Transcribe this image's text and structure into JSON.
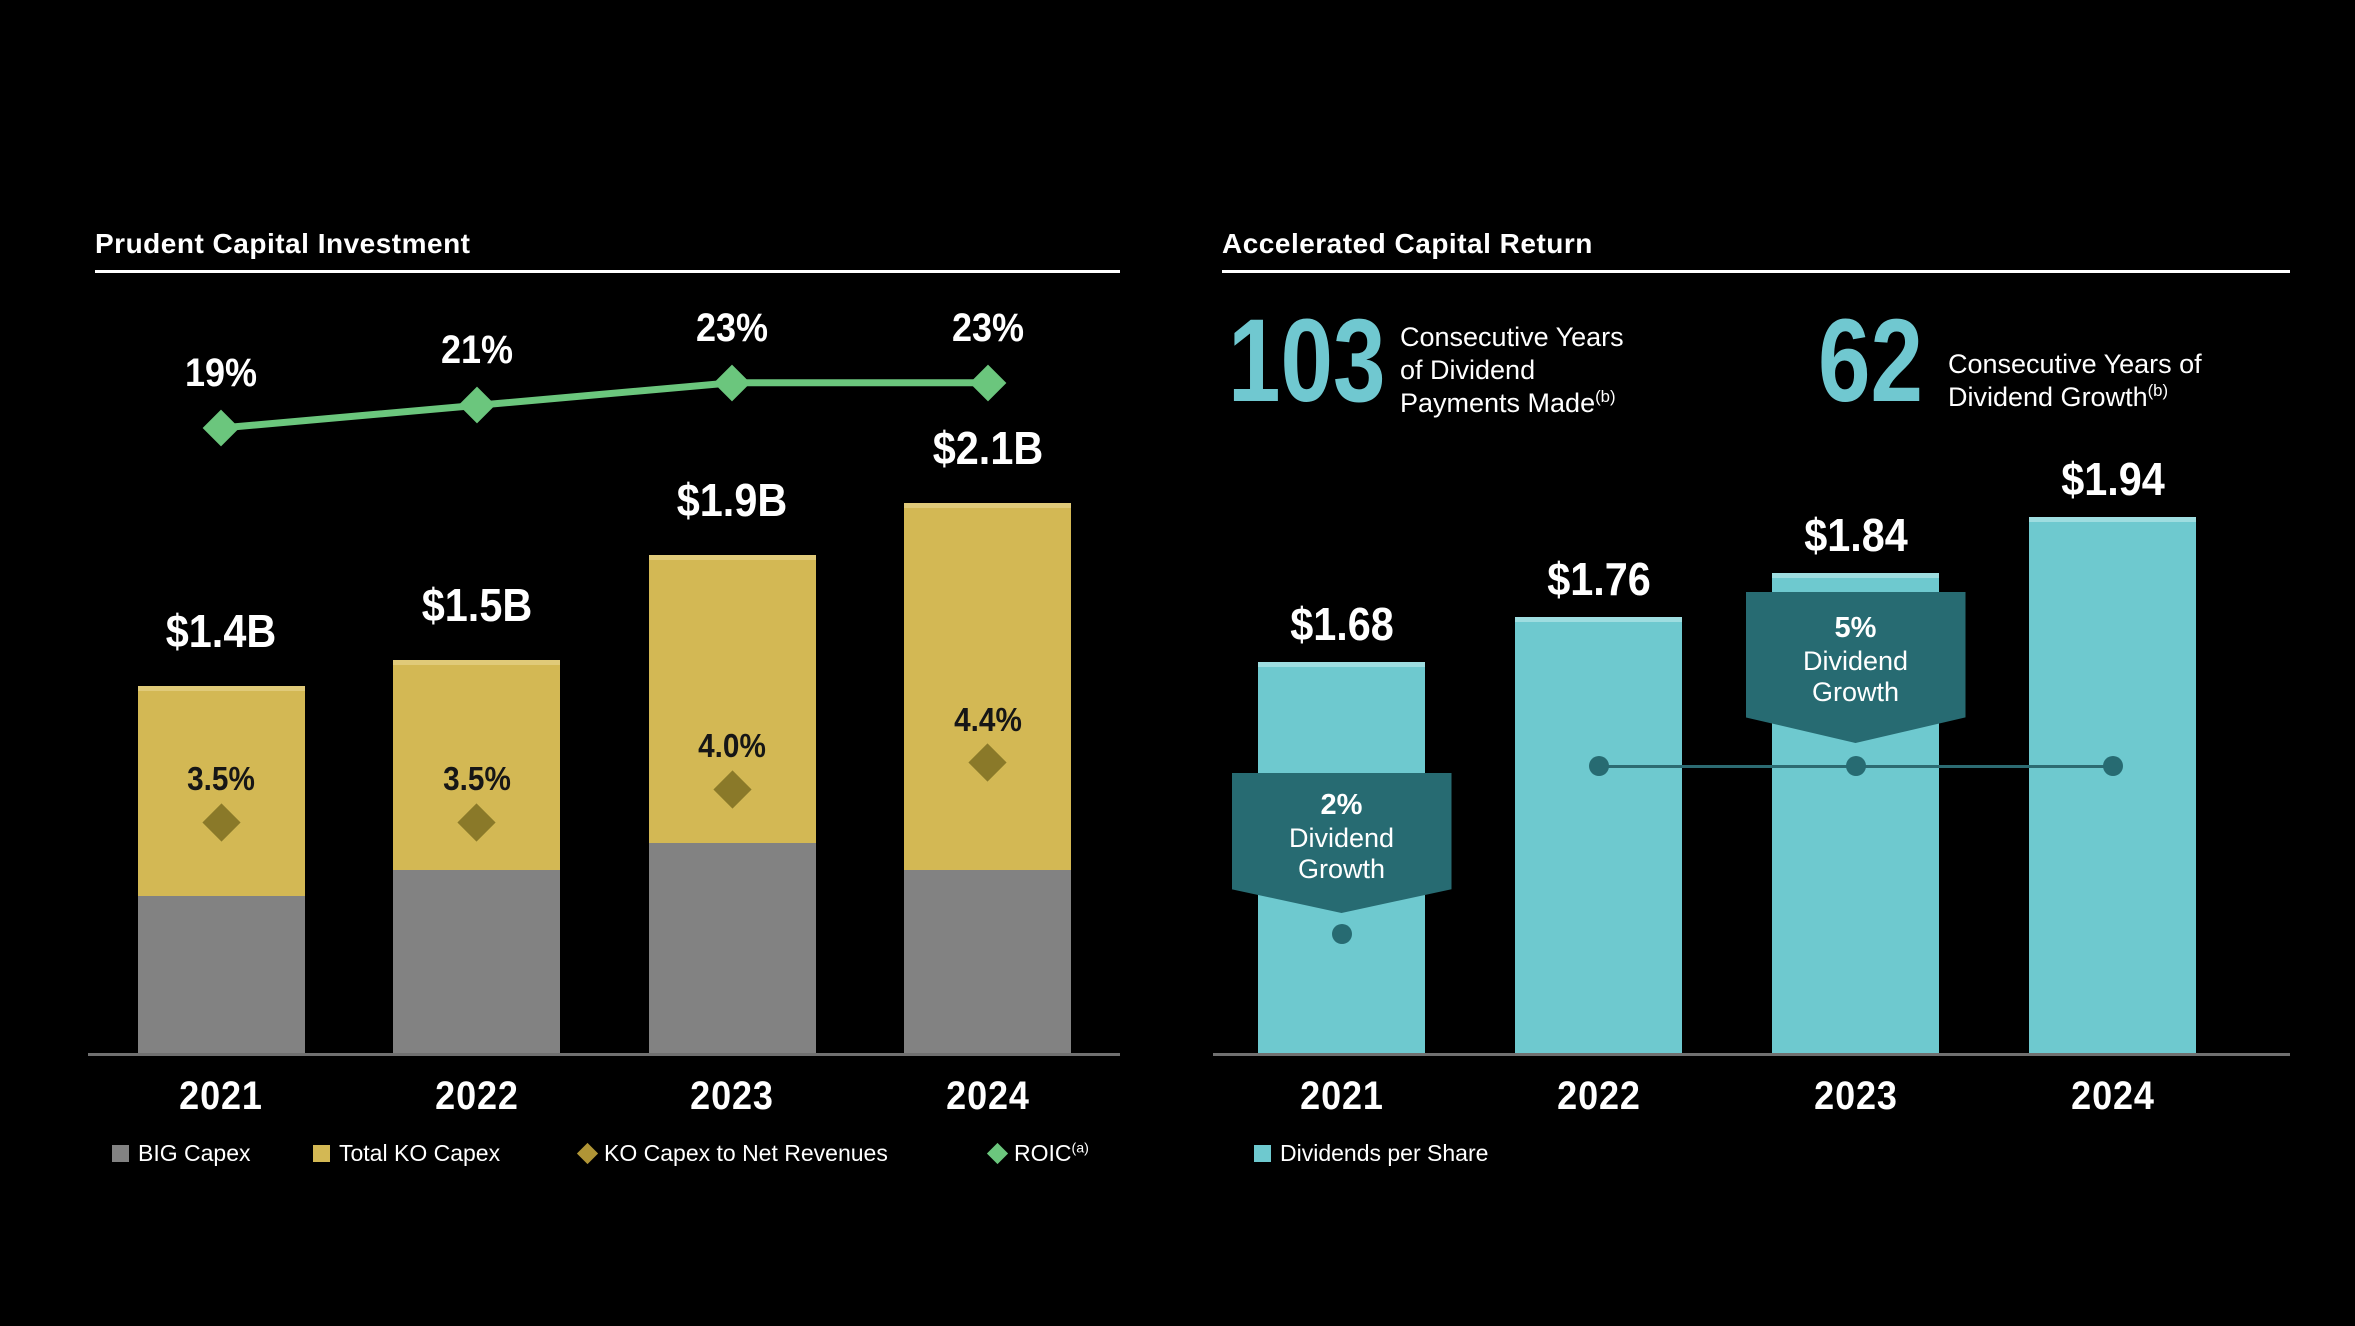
{
  "colors": {
    "background": "#000000",
    "white": "#ffffff",
    "gold_bar": "#d3b854",
    "gold_bar_cap": "#e0ca79",
    "gray_bar": "#828282",
    "teal_bar": "#6ec9cf",
    "teal_bar_cap": "#9edde0",
    "dark_teal": "#276b72",
    "green_line": "#6bc67d",
    "olive_diamond": "#8a7929",
    "stat_teal": "#70c8d0",
    "axis_gray": "#707070",
    "dark_label": "#161616"
  },
  "chart_data": [
    {
      "type": "bar",
      "subtype": "stacked-bars-with-line-overlay",
      "title": "Prudent Capital Investment",
      "categories": [
        "2021",
        "2022",
        "2023",
        "2024"
      ],
      "series": [
        {
          "name": "BIG Capex",
          "role": "bar-stack-bottom",
          "marker": "square",
          "color": "#828282",
          "unit": "$B",
          "values": [
            0.6,
            0.7,
            0.8,
            0.7
          ]
        },
        {
          "name": "Total KO Capex",
          "role": "bar-stack-total",
          "marker": "square",
          "color": "#d3b854",
          "cap_color": "#e0ca79",
          "unit": "$B",
          "values": [
            1.4,
            1.5,
            1.9,
            2.1
          ],
          "labels": [
            "$1.4B",
            "$1.5B",
            "$1.9B",
            "$2.1B"
          ],
          "label_color": "#ffffff"
        },
        {
          "name": "KO Capex to Net Revenues",
          "role": "point-markers",
          "marker": "diamond",
          "color": "#8a7929",
          "legend_marker_color": "#b09536",
          "unit": "%",
          "values": [
            3.5,
            3.5,
            4.0,
            4.4
          ],
          "labels": [
            "3.5%",
            "3.5%",
            "4.0%",
            "4.4%"
          ],
          "label_color": "#161616"
        },
        {
          "name": "ROIC",
          "superscript": "(a)",
          "role": "line",
          "marker": "diamond",
          "color": "#6bc67d",
          "unit": "%",
          "values": [
            19,
            21,
            23,
            23
          ],
          "labels": [
            "19%",
            "21%",
            "23%",
            "23%"
          ],
          "label_color": "#ffffff"
        }
      ],
      "legend_position": "bottom",
      "gridlines": false,
      "y_axis_visible": false
    },
    {
      "type": "bar",
      "title": "Accelerated Capital Return",
      "categories": [
        "2021",
        "2022",
        "2023",
        "2024"
      ],
      "series": [
        {
          "name": "Dividends per Share",
          "marker": "square",
          "color": "#6ec9cf",
          "cap_color": "#9edde0",
          "unit": "$",
          "values": [
            1.68,
            1.76,
            1.84,
            1.94
          ],
          "labels": [
            "$1.68",
            "$1.76",
            "$1.84",
            "$1.94"
          ],
          "label_color": "#ffffff"
        }
      ],
      "stats": [
        {
          "number": "103",
          "number_color": "#70c8d0",
          "lines": [
            "Consecutive Years",
            "of Dividend",
            "Payments Made"
          ],
          "superscript": "(b)"
        },
        {
          "number": "62",
          "number_color": "#70c8d0",
          "lines": [
            "Consecutive Years of",
            "Dividend Growth"
          ],
          "superscript": "(b)"
        }
      ],
      "annotations": [
        {
          "label_lines": [
            "2%",
            "Dividend",
            "Growth"
          ],
          "category": "2021",
          "color": "#276b72"
        },
        {
          "label_lines": [
            "5%",
            "Dividend",
            "Growth"
          ],
          "category": "2023",
          "color": "#276b72"
        }
      ],
      "connector": {
        "categories": [
          "2022",
          "2023",
          "2024"
        ],
        "color": "#2c6b72"
      },
      "legend_position": "bottom",
      "gridlines": false,
      "y_axis_visible": false,
      "baseline_truncated": true
    }
  ]
}
